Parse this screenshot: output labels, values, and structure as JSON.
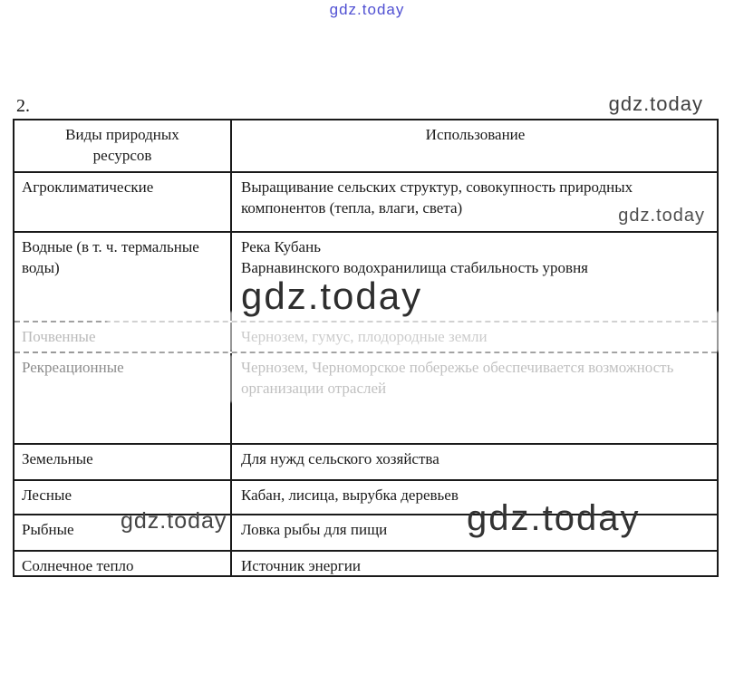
{
  "page": {
    "number_label": "2."
  },
  "watermarks": {
    "top": "gdz.today",
    "top_right": "gdz.today",
    "row_agro": "gdz.today",
    "center_big": "gdz.today",
    "fish_left": "gdz.today",
    "fish_right": "gdz.today"
  },
  "colors": {
    "watermark_blue": "#3d3dce",
    "watermark_gray": "#3f3f3f",
    "table_border": "#1a1a1a"
  },
  "table": {
    "headers": {
      "col1": "Виды природных ресурсов",
      "col2": "Использование"
    },
    "rows": [
      {
        "resource": "Агроклиматические",
        "usage": "Выращивание сельских структур, совокупность природных компонентов (тепла, влаги, света)"
      },
      {
        "resource": "Водные (в т. ч. термальные воды)",
        "usage": "Река Кубань\nВарнавинского водохранилища стабильность уровня"
      },
      {
        "resource": "Почвенные",
        "usage": "Чернозем, гумус, плодородные земли"
      },
      {
        "resource": "Рекреационные",
        "usage": "Чернозем, Черноморское побережье обеспечивается возможность организации отраслей"
      },
      {
        "resource": "Земельные",
        "usage": "Для нужд сельского хозяйства"
      },
      {
        "resource": "Лесные",
        "usage": "Кабан, лисица, вырубка деревьев"
      },
      {
        "resource": "Рыбные",
        "usage": "Ловка рыбы для пищи"
      },
      {
        "resource": "Солнечное тепло",
        "usage": "Источник энергии"
      }
    ]
  }
}
